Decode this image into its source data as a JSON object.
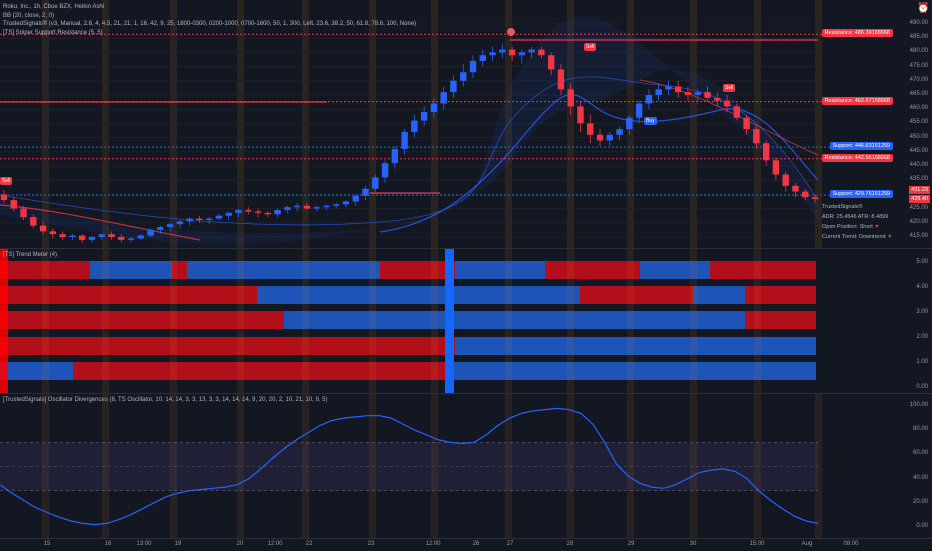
{
  "legend": {
    "title": "Roku, Inc., 1h, Cboe BZX, Heikin Ashi",
    "bb": "BB (20, close, 2, 0)",
    "ts_main": "TrustedSignals® (v3, Manual, 2.8, 4, 4.5, 21, 21, 1, 16, 42, 9, 25, 1800-0300, 0200-1000, 0700-1600, 50, 1, 300, Left, 23.6, 38.2, 50, 61.8, 78.6, 100, None)",
    "sniper": "[TS] Sniper Support Resistance (5, 5)",
    "trend_meter": "[TS] Trend Meter (4)",
    "osc": "[TrustedSignals] Oscillator Divergences (8, TS Oscillator, 10, 14, 14, 3, 3, 13, 3, 3, 14, 14, 14, 9, 20, 20, 2, 10, 21, 10, 9, 5)"
  },
  "price_axis": [
    "490.00",
    "485.00",
    "480.00",
    "475.00",
    "470.00",
    "465.00",
    "460.00",
    "455.00",
    "450.00",
    "445.00",
    "440.00",
    "435.00",
    "430.00",
    "425.00",
    "420.00",
    "415.00"
  ],
  "trend_axis": [
    "5.00",
    "4.00",
    "3.00",
    "2.00",
    "1.00",
    "0.00"
  ],
  "osc_axis": [
    "100.00",
    "80.00",
    "60.00",
    "40.00",
    "20.00",
    "0.00"
  ],
  "levels": [
    {
      "label": "Resistance: 486.39168968",
      "price": 486.39,
      "color": "#f23645",
      "kind": "res"
    },
    {
      "label": "Resistance: 462.67168968",
      "price": 462.67,
      "color": "#f23645",
      "kind": "res"
    },
    {
      "label": "Support: 446.63151259",
      "price": 446.63,
      "color": "#2962ff",
      "kind": "sup"
    },
    {
      "label": "Resistance: 442.56168968",
      "price": 442.56,
      "color": "#f23645",
      "kind": "res"
    },
    {
      "label": "Support: 429.76151259",
      "price": 429.76,
      "color": "#2962ff",
      "kind": "sup"
    }
  ],
  "last_price": {
    "top": "431.23",
    "bottom": "428.40"
  },
  "signals": {
    "sell": "Sell",
    "buy": "Buy"
  },
  "ts_info": {
    "name": "TrustedSignals®",
    "adr": "ADR: 25.4546  ATR: 8.4899",
    "position": "Open Position: Short",
    "trend": "Current Trend: Downtrend"
  },
  "time_axis": [
    "15",
    "16",
    "13:00",
    "19",
    "20",
    "12:00",
    "22",
    "23",
    "12:00",
    "26",
    "27",
    "28",
    "29",
    "30",
    "15:00",
    "Aug",
    "08:00"
  ],
  "colors": {
    "up": "#2962ff",
    "down": "#f23645",
    "bg": "#131722"
  },
  "candles": [
    [
      430,
      431.5,
      427,
      428
    ],
    [
      428,
      429,
      424,
      425
    ],
    [
      425,
      426,
      421,
      422
    ],
    [
      422,
      423,
      418,
      419
    ],
    [
      419,
      420.5,
      416,
      417
    ],
    [
      417,
      418,
      414.5,
      416
    ],
    [
      416,
      417,
      414,
      415
    ],
    [
      415,
      416,
      414,
      415.5
    ],
    [
      415.5,
      416,
      413,
      414
    ],
    [
      414,
      415.5,
      413,
      415
    ],
    [
      415,
      416,
      414,
      416
    ],
    [
      416,
      417,
      414,
      415
    ],
    [
      415,
      416,
      413,
      414
    ],
    [
      414,
      415,
      413,
      414.5
    ],
    [
      414.5,
      416,
      414,
      415.5
    ],
    [
      415.5,
      418,
      415,
      417.5
    ],
    [
      417.5,
      419,
      416,
      418.5
    ],
    [
      418.5,
      420,
      417,
      419.5
    ],
    [
      419.5,
      421,
      418,
      420.5
    ],
    [
      420.5,
      422,
      419,
      421.5
    ],
    [
      421.5,
      422.5,
      420,
      421
    ],
    [
      421,
      422,
      419.5,
      421.5
    ],
    [
      421.5,
      423,
      421,
      422.5
    ],
    [
      422.5,
      424,
      421,
      423.5
    ],
    [
      423.5,
      425,
      422,
      424.5
    ],
    [
      424.5,
      425.5,
      423,
      424
    ],
    [
      424,
      425,
      422,
      423.5
    ],
    [
      423.5,
      424,
      422,
      423
    ],
    [
      423,
      425,
      422,
      424.5
    ],
    [
      424.5,
      426,
      423.5,
      425.5
    ],
    [
      425.5,
      427,
      424,
      426
    ],
    [
      426,
      427,
      424.5,
      425
    ],
    [
      425,
      426,
      424,
      425.5
    ],
    [
      425.5,
      426.5,
      424.5,
      426
    ],
    [
      426,
      427,
      425,
      426.5
    ],
    [
      426.5,
      428,
      425.5,
      427.5
    ],
    [
      427.5,
      430,
      426,
      429.5
    ],
    [
      429.5,
      433,
      428,
      432
    ],
    [
      432,
      437,
      431,
      436
    ],
    [
      436,
      442,
      434,
      441
    ],
    [
      441,
      447,
      439,
      446
    ],
    [
      446,
      453,
      444,
      452
    ],
    [
      452,
      458,
      450,
      456
    ],
    [
      456,
      461,
      454,
      459
    ],
    [
      459,
      464,
      457,
      462
    ],
    [
      462,
      468,
      460,
      466
    ],
    [
      466,
      472,
      464,
      470
    ],
    [
      470,
      476,
      468,
      473
    ],
    [
      473,
      479,
      471,
      477
    ],
    [
      477,
      481,
      475,
      479
    ],
    [
      479,
      482,
      477,
      480
    ],
    [
      480,
      483,
      478,
      481
    ],
    [
      481,
      482,
      477,
      479
    ],
    [
      479,
      481,
      476,
      480
    ],
    [
      480,
      482,
      478,
      481
    ],
    [
      481,
      482,
      478,
      479
    ],
    [
      479,
      480,
      472,
      474
    ],
    [
      474,
      476,
      465,
      467
    ],
    [
      467,
      469,
      458,
      461
    ],
    [
      461,
      463,
      452,
      455
    ],
    [
      455,
      458,
      448,
      451
    ],
    [
      451,
      453,
      447,
      449
    ],
    [
      449,
      452,
      447,
      451
    ],
    [
      451,
      454,
      449,
      453
    ],
    [
      453,
      458,
      451,
      457
    ],
    [
      457,
      463,
      455,
      462
    ],
    [
      462,
      467,
      460,
      465
    ],
    [
      465,
      469,
      463,
      467
    ],
    [
      467,
      470,
      465,
      468
    ],
    [
      468,
      470,
      464,
      466
    ],
    [
      466,
      468,
      463,
      465
    ],
    [
      465,
      467,
      462,
      466
    ],
    [
      466,
      468,
      463,
      464
    ],
    [
      464,
      466,
      461,
      463
    ],
    [
      463,
      465,
      459,
      461
    ],
    [
      461,
      462,
      456,
      457
    ],
    [
      457,
      458,
      451,
      453
    ],
    [
      453,
      454,
      446,
      448
    ],
    [
      448,
      449,
      440,
      442
    ],
    [
      442,
      443,
      435,
      437
    ],
    [
      437,
      438,
      431,
      433
    ],
    [
      433,
      434,
      429,
      431
    ],
    [
      431,
      432,
      428,
      429
    ],
    [
      429,
      430,
      427,
      428.4
    ]
  ],
  "trend_rows": [
    [
      [
        0,
        90,
        "down"
      ],
      [
        90,
        172,
        "up"
      ],
      [
        172,
        187,
        "down"
      ],
      [
        187,
        380,
        "up"
      ],
      [
        380,
        455,
        "down"
      ],
      [
        455,
        545,
        "up"
      ],
      [
        545,
        640,
        "down"
      ],
      [
        640,
        710,
        "up"
      ],
      [
        710,
        816,
        "down"
      ]
    ],
    [
      [
        0,
        257,
        "down"
      ],
      [
        257,
        455,
        "up"
      ],
      [
        455,
        580,
        "up"
      ],
      [
        580,
        693,
        "down"
      ],
      [
        693,
        745,
        "up"
      ],
      [
        745,
        816,
        "down"
      ]
    ],
    [
      [
        0,
        284,
        "down"
      ],
      [
        284,
        455,
        "up"
      ],
      [
        455,
        745,
        "up"
      ],
      [
        745,
        816,
        "down"
      ]
    ],
    [
      [
        0,
        442,
        "down"
      ],
      [
        442,
        455,
        "down"
      ],
      [
        455,
        816,
        "up"
      ]
    ],
    [
      [
        0,
        73,
        "up"
      ],
      [
        73,
        447,
        "down"
      ],
      [
        447,
        816,
        "up"
      ]
    ]
  ],
  "osc_values": [
    35,
    28,
    22,
    16,
    12,
    8,
    5,
    3,
    2,
    3,
    6,
    10,
    15,
    20,
    25,
    28,
    30,
    31,
    32,
    33,
    35,
    40,
    48,
    57,
    65,
    72,
    78,
    84,
    88,
    90,
    91,
    92,
    92,
    90,
    85,
    80,
    76,
    72,
    70,
    69,
    70,
    76,
    84,
    90,
    94,
    96,
    97,
    98,
    97,
    94,
    85,
    70,
    52,
    42,
    36,
    33,
    32,
    35,
    40,
    45,
    47,
    48,
    46,
    40,
    30,
    22,
    15,
    9,
    5,
    3
  ]
}
